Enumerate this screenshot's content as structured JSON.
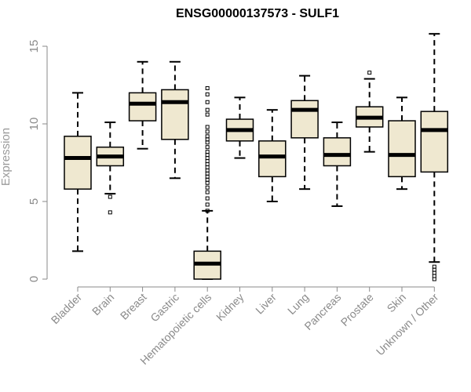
{
  "chart_data": {
    "type": "boxplot",
    "title": "ENSG00000137573 - SULF1",
    "xlabel": "",
    "ylabel": "Expression",
    "ylim": [
      0,
      15.5
    ],
    "yticks": [
      0,
      5,
      10,
      15
    ],
    "grid": false,
    "categories": [
      "Bladder",
      "Brain",
      "Breast",
      "Gastric",
      "Hematopoietic cells",
      "Kidney",
      "Liver",
      "Lung",
      "Pancreas",
      "Prostate",
      "Skin",
      "Unknown / Other"
    ],
    "boxes": [
      {
        "category": "Bladder",
        "whisker_low": 1.8,
        "q1": 5.8,
        "median": 7.8,
        "q3": 9.2,
        "whisker_high": 12.0,
        "outliers": []
      },
      {
        "category": "Brain",
        "whisker_low": 5.5,
        "q1": 7.3,
        "median": 7.9,
        "q3": 8.5,
        "whisker_high": 10.1,
        "outliers": [
          5.3,
          4.3
        ]
      },
      {
        "category": "Breast",
        "whisker_low": 8.4,
        "q1": 10.2,
        "median": 11.3,
        "q3": 12.0,
        "whisker_high": 14.0,
        "outliers": []
      },
      {
        "category": "Gastric",
        "whisker_low": 6.5,
        "q1": 9.0,
        "median": 11.4,
        "q3": 12.2,
        "whisker_high": 14.0,
        "outliers": []
      },
      {
        "category": "Hematopoietic cells",
        "whisker_low": 0.0,
        "q1": 0.0,
        "median": 1.0,
        "q3": 1.8,
        "whisker_high": 4.4,
        "outliers": [
          4.4,
          4.8,
          5.2,
          5.6,
          5.9,
          6.2,
          6.4,
          6.6,
          6.8,
          7.0,
          7.2,
          7.4,
          7.6,
          7.8,
          8.0,
          8.2,
          8.5,
          8.8,
          9.0,
          9.2,
          9.5,
          9.8,
          10.6,
          10.9,
          11.4,
          11.9,
          12.3
        ]
      },
      {
        "category": "Kidney",
        "whisker_low": 7.8,
        "q1": 8.9,
        "median": 9.6,
        "q3": 10.3,
        "whisker_high": 11.7,
        "outliers": []
      },
      {
        "category": "Liver",
        "whisker_low": 5.0,
        "q1": 6.6,
        "median": 7.9,
        "q3": 8.9,
        "whisker_high": 10.9,
        "outliers": []
      },
      {
        "category": "Lung",
        "whisker_low": 5.8,
        "q1": 9.1,
        "median": 10.9,
        "q3": 11.5,
        "whisker_high": 13.1,
        "outliers": []
      },
      {
        "category": "Pancreas",
        "whisker_low": 4.7,
        "q1": 7.3,
        "median": 8.0,
        "q3": 9.1,
        "whisker_high": 10.1,
        "outliers": []
      },
      {
        "category": "Prostate",
        "whisker_low": 8.2,
        "q1": 9.8,
        "median": 10.4,
        "q3": 11.1,
        "whisker_high": 12.9,
        "outliers": [
          13.3
        ]
      },
      {
        "category": "Skin",
        "whisker_low": 5.8,
        "q1": 6.6,
        "median": 8.0,
        "q3": 10.2,
        "whisker_high": 11.7,
        "outliers": []
      },
      {
        "category": "Unknown / Other",
        "whisker_low": 1.1,
        "q1": 6.9,
        "median": 9.6,
        "q3": 10.8,
        "whisker_high": 15.8,
        "outliers": [
          0.8,
          0.6,
          0.4,
          0.2,
          0.0
        ]
      }
    ]
  }
}
